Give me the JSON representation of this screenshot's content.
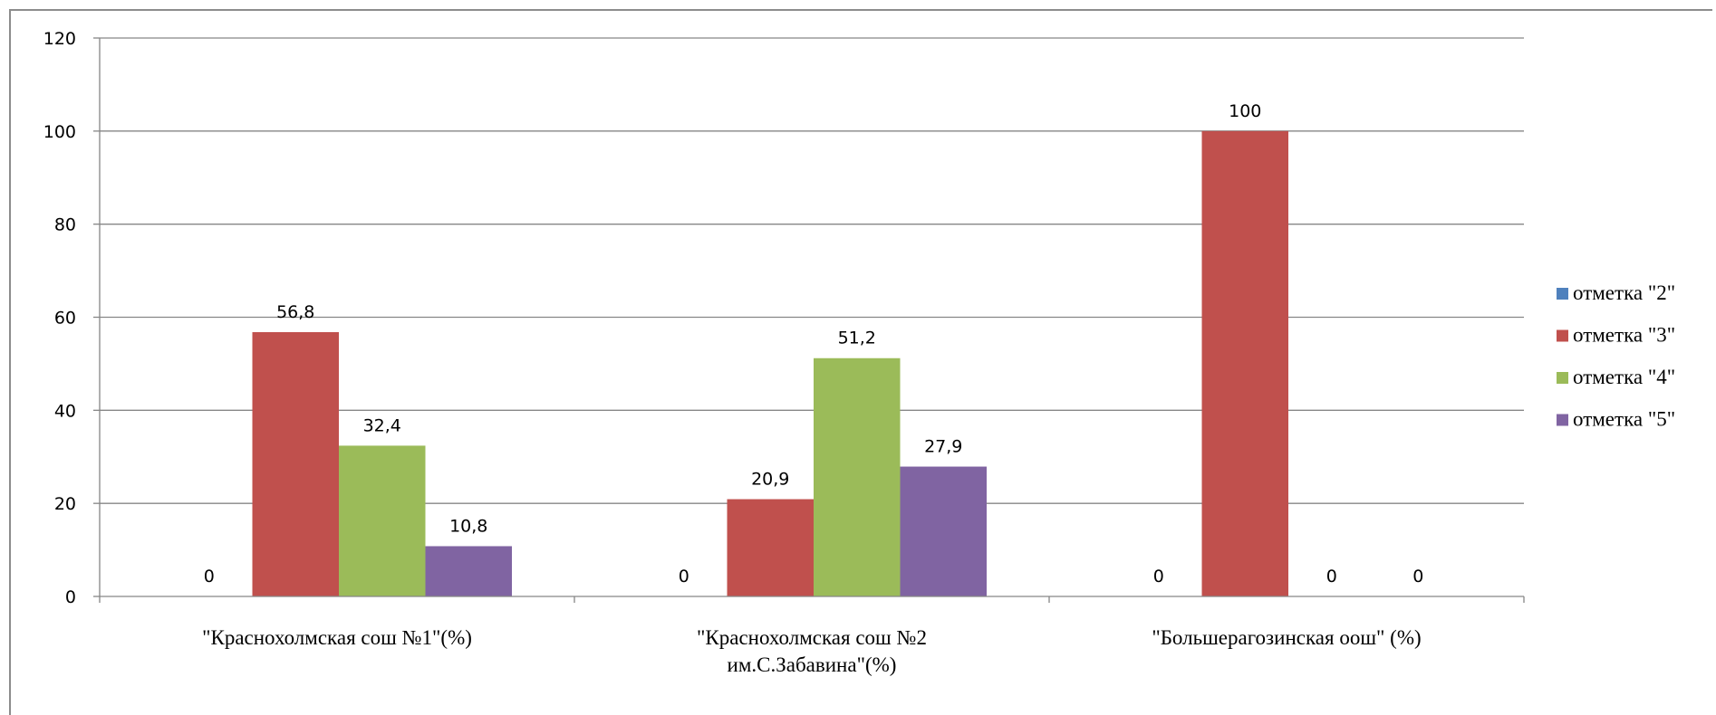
{
  "chart_data": {
    "type": "bar",
    "categories": [
      [
        "\"Краснохолмская сош №1\"(%)"
      ],
      [
        "\"Краснохолмская сош №2",
        "им.С.Забавина\"(%)"
      ],
      [
        "\"Большерагозинская оош\" (%)"
      ]
    ],
    "series": [
      {
        "name": "отметка \"2\"",
        "color": "#4f81bd",
        "values": [
          0,
          0,
          0
        ],
        "labels": [
          "0",
          "0",
          "0"
        ]
      },
      {
        "name": "отметка \"3\"",
        "color": "#c0504d",
        "values": [
          56.8,
          20.9,
          100
        ],
        "labels": [
          "56,8",
          "20,9",
          "100"
        ]
      },
      {
        "name": "отметка \"4\"",
        "color": "#9bbb59",
        "values": [
          32.4,
          51.2,
          0
        ],
        "labels": [
          "32,4",
          "51,2",
          "0"
        ]
      },
      {
        "name": "отметка \"5\"",
        "color": "#8064a2",
        "values": [
          10.8,
          27.9,
          0
        ],
        "labels": [
          "10,8",
          "27,9",
          "0"
        ]
      }
    ],
    "ylim": [
      0,
      120
    ],
    "yticks": [
      0,
      20,
      40,
      60,
      80,
      100,
      120
    ],
    "grid": true,
    "legend": "right"
  }
}
